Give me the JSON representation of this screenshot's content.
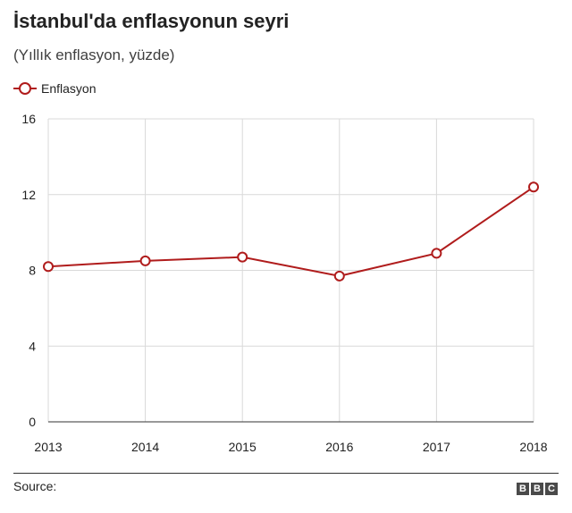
{
  "header": {
    "title": "İstanbul'da enflasyonun seyri",
    "subtitle": "(Yıllık enflasyon, yüzde)"
  },
  "footer": {
    "source_label": "Source:",
    "logo_letters": [
      "B",
      "B",
      "C"
    ]
  },
  "colors": {
    "series": "#b01c1c",
    "grid": "#d9d9d9",
    "axis": "#333333"
  },
  "chart_data": {
    "type": "line",
    "title": "İstanbul'da enflasyonun seyri",
    "subtitle": "(Yıllık enflasyon, yüzde)",
    "xlabel": "",
    "ylabel": "",
    "x": [
      "2013",
      "2014",
      "2015",
      "2016",
      "2017",
      "2018"
    ],
    "ylim": [
      0,
      16
    ],
    "yticks": [
      "0",
      "4",
      "8",
      "12",
      "16"
    ],
    "grid": true,
    "legend_position": "top-left",
    "series": [
      {
        "name": "Enflasyon",
        "values": [
          8.2,
          8.5,
          8.7,
          7.7,
          8.9,
          12.4
        ]
      }
    ]
  }
}
